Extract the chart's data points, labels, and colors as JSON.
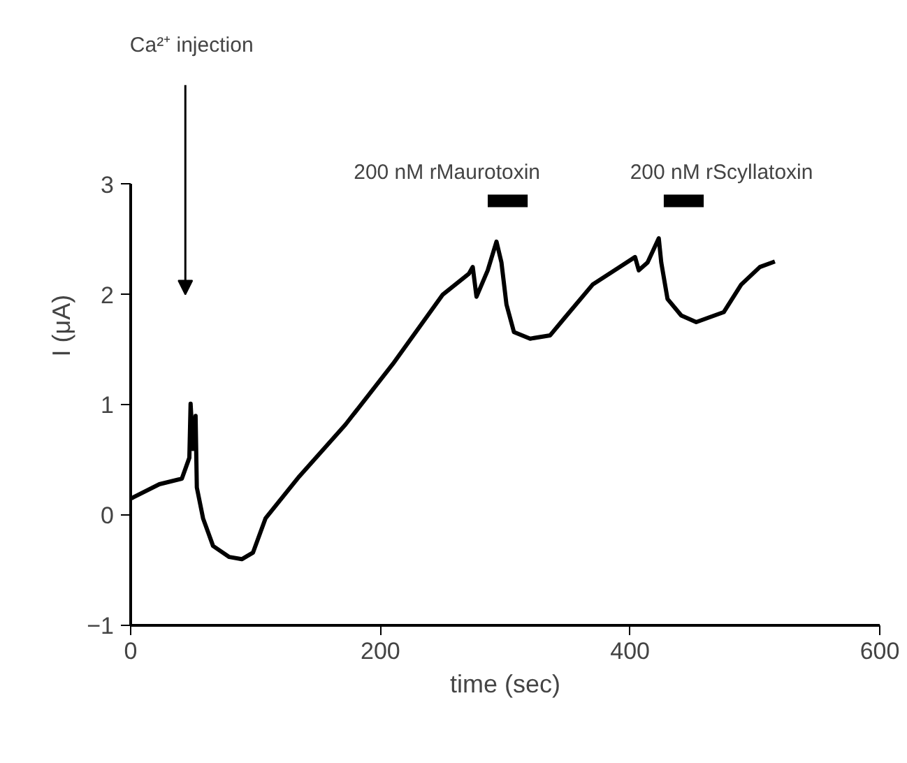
{
  "chart_data": {
    "type": "line",
    "xlabel": "time (sec)",
    "ylabel": "I  (μA)",
    "xlim": [
      0,
      600
    ],
    "xticks": [
      0,
      200,
      400,
      600
    ],
    "ylim": [
      -1,
      3
    ],
    "yticks": [
      -1,
      0,
      1,
      2,
      3
    ],
    "grid": false,
    "legend": false,
    "series": [
      {
        "color": "#000000",
        "x": [
          0,
          2,
          23,
          41,
          47,
          48,
          50,
          52,
          53,
          58,
          66,
          79,
          89,
          98,
          108,
          135,
          172,
          210,
          250,
          271,
          274,
          277,
          286,
          293,
          297,
          301,
          307,
          320,
          336,
          347,
          370,
          389,
          404,
          407,
          414,
          423,
          425,
          430,
          441,
          453,
          475,
          489,
          504,
          516
        ],
        "values": [
          0.15,
          0.16,
          0.28,
          0.33,
          0.52,
          1.01,
          0.6,
          0.9,
          0.25,
          -0.03,
          -0.28,
          -0.38,
          -0.4,
          -0.34,
          -0.03,
          0.35,
          0.82,
          1.37,
          2.0,
          2.19,
          2.25,
          1.98,
          2.22,
          2.48,
          2.29,
          1.91,
          1.66,
          1.6,
          1.63,
          1.78,
          2.09,
          2.23,
          2.34,
          2.22,
          2.29,
          2.51,
          2.29,
          1.96,
          1.81,
          1.75,
          1.84,
          2.09,
          2.25,
          2.3
        ]
      },
      {
        "name": "200 nM rMaurotoxin",
        "color": "#000000",
        "x": [
          286,
          318
        ],
        "values": [
          2.85,
          2.85
        ]
      },
      {
        "name": "200 nM rScyllatoxin",
        "color": "#000000",
        "x": [
          427,
          459
        ],
        "values": [
          2.85,
          2.85
        ]
      }
    ],
    "annotations": [
      "Ca²⁺ injection"
    ]
  }
}
